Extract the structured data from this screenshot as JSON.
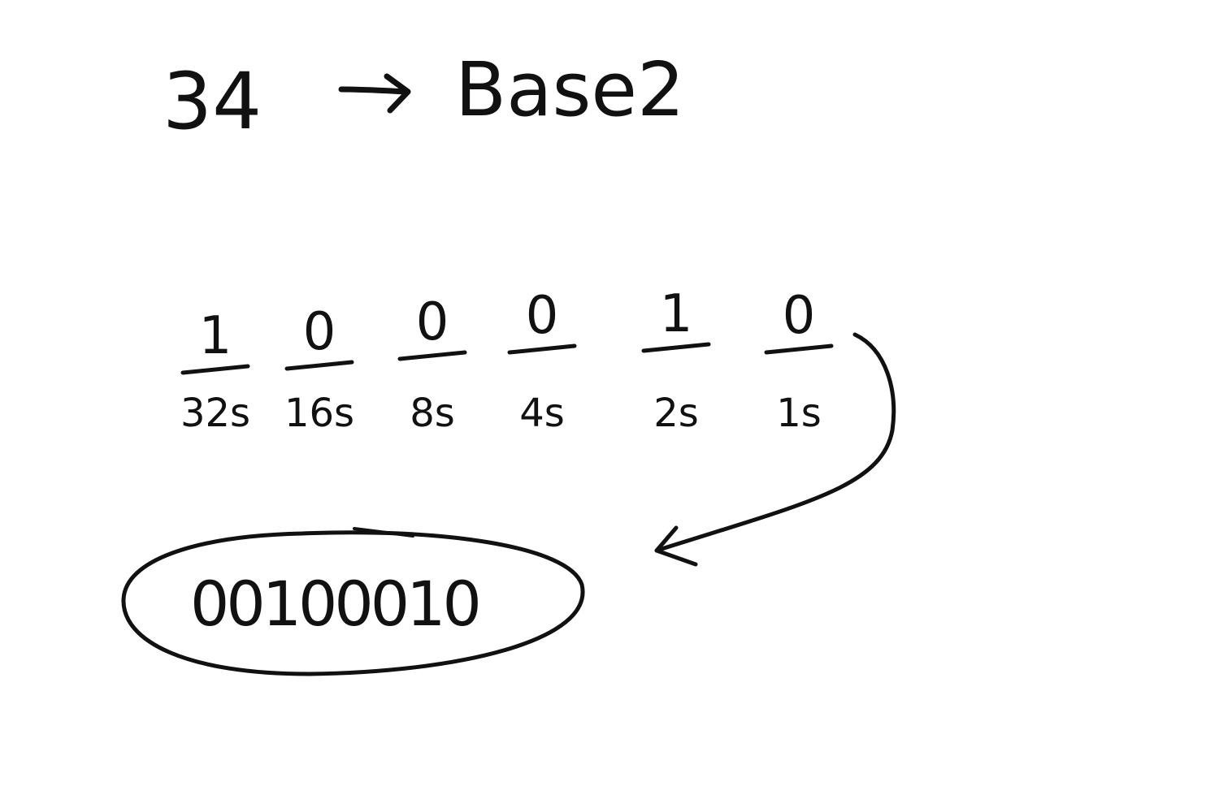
{
  "conversion": {
    "number": "34",
    "arrow": "→",
    "target_base": "Base2"
  },
  "place_values": [
    {
      "digit": "1",
      "label": "32s"
    },
    {
      "digit": "0",
      "label": "16s"
    },
    {
      "digit": "0",
      "label": "8s"
    },
    {
      "digit": "0",
      "label": "4s"
    },
    {
      "digit": "1",
      "label": "2s"
    },
    {
      "digit": "0",
      "label": "1s"
    }
  ],
  "result": "00100010",
  "colors": {
    "ink": "#111111",
    "background": "#ffffff"
  }
}
